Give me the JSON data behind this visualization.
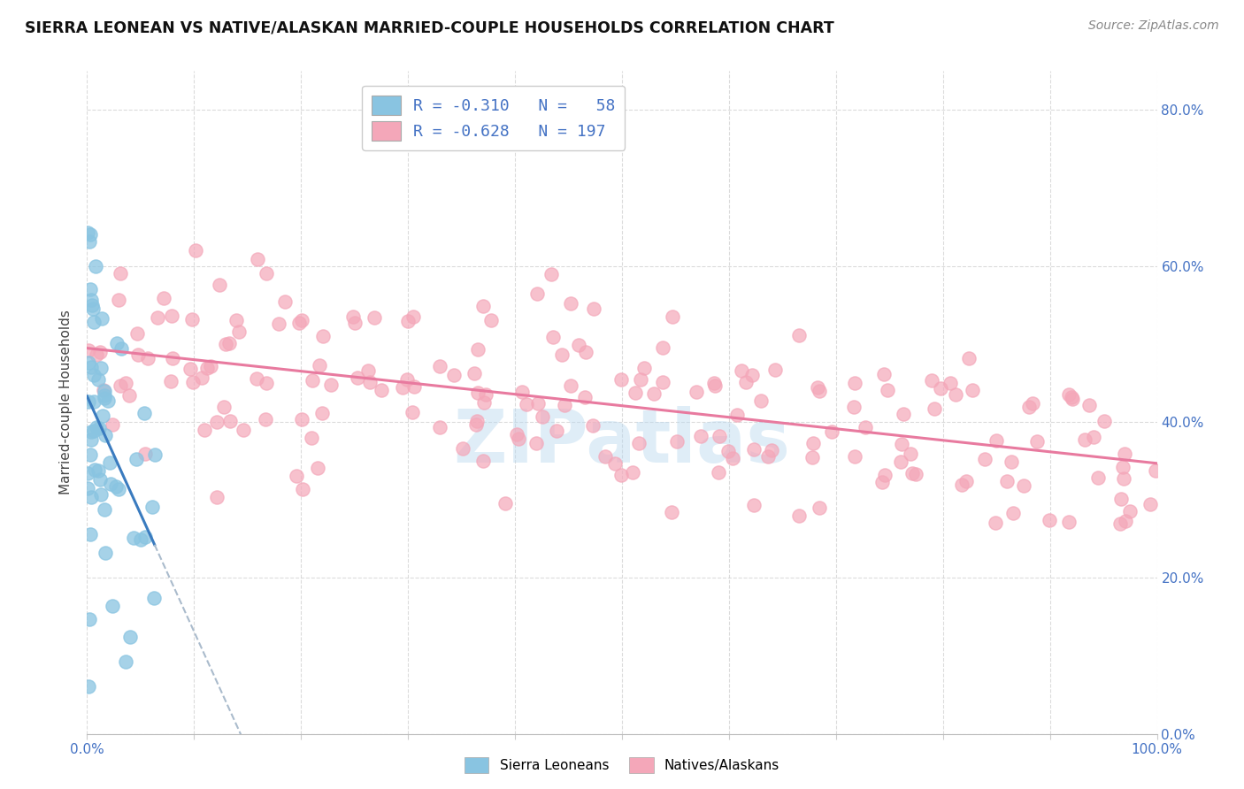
{
  "title": "SIERRA LEONEAN VS NATIVE/ALASKAN MARRIED-COUPLE HOUSEHOLDS CORRELATION CHART",
  "source": "Source: ZipAtlas.com",
  "ylabel": "Married-couple Households",
  "legend_labels": [
    "Sierra Leoneans",
    "Natives/Alaskans"
  ],
  "blue_color": "#89c4e1",
  "pink_color": "#f4a7b9",
  "blue_line_color": "#3a7bbf",
  "pink_line_color": "#e87a9f",
  "blue_r": -0.31,
  "blue_n": 58,
  "pink_r": -0.628,
  "pink_n": 197,
  "watermark": "ZIPatlas",
  "xlim": [
    0.0,
    1.0
  ],
  "ylim": [
    0.0,
    0.85
  ],
  "y_ticks": [
    0.0,
    0.2,
    0.4,
    0.6,
    0.8
  ],
  "right_tick_color": "#4472c4",
  "grid_color": "#cccccc",
  "title_color": "#111111",
  "source_color": "#888888",
  "ylabel_color": "#444444"
}
